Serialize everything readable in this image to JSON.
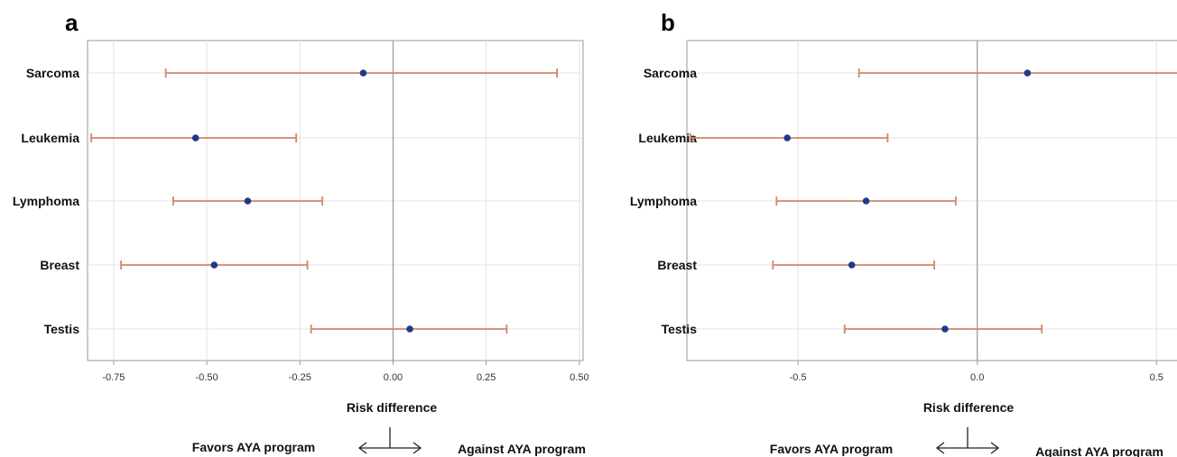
{
  "chart_data": [
    {
      "type": "forest",
      "panel_label": "a",
      "categories": [
        "Sarcoma",
        "Leukemia",
        "Lymphoma",
        "Breast",
        "Testis"
      ],
      "estimates": [
        -0.08,
        -0.53,
        -0.39,
        -0.48,
        0.045
      ],
      "ci_lower": [
        -0.61,
        -0.81,
        -0.59,
        -0.73,
        -0.22
      ],
      "ci_upper": [
        0.44,
        -0.26,
        -0.19,
        -0.23,
        0.305
      ],
      "xlim": [
        -0.82,
        0.51
      ],
      "xticks": [
        -0.75,
        -0.5,
        -0.25,
        0.0,
        0.25,
        0.5
      ],
      "xtick_labels": [
        "-0.75",
        "-0.50",
        "-0.25",
        "0.00",
        "0.25",
        "0.50"
      ],
      "reference_line": 0.0,
      "xlabel": "Risk difference",
      "direction_left": "Favors AYA program",
      "direction_right": "Against AYA program",
      "grid": true
    },
    {
      "type": "forest",
      "panel_label": "b",
      "categories": [
        "Sarcoma",
        "Leukemia",
        "Lymphoma",
        "Breast",
        "Testis"
      ],
      "estimates": [
        0.14,
        -0.53,
        -0.31,
        -0.35,
        -0.09
      ],
      "ci_lower": [
        -0.33,
        -0.8,
        -0.56,
        -0.57,
        -0.37
      ],
      "ci_upper": [
        0.6,
        -0.25,
        -0.06,
        -0.12,
        0.18
      ],
      "xlim": [
        -0.81,
        0.6
      ],
      "xticks": [
        -0.5,
        0.0,
        0.5
      ],
      "xtick_labels": [
        "-0.5",
        "0.0",
        "0.5"
      ],
      "reference_line": 0.0,
      "xlabel": "Risk difference",
      "direction_left": "Favors AYA program",
      "direction_right": "Against AYA program",
      "grid": true
    }
  ],
  "colors": {
    "point": "#1c3a8c",
    "ci": "#d2866a",
    "frame": "#9a9a9a",
    "grid": "#e3e3e3"
  }
}
